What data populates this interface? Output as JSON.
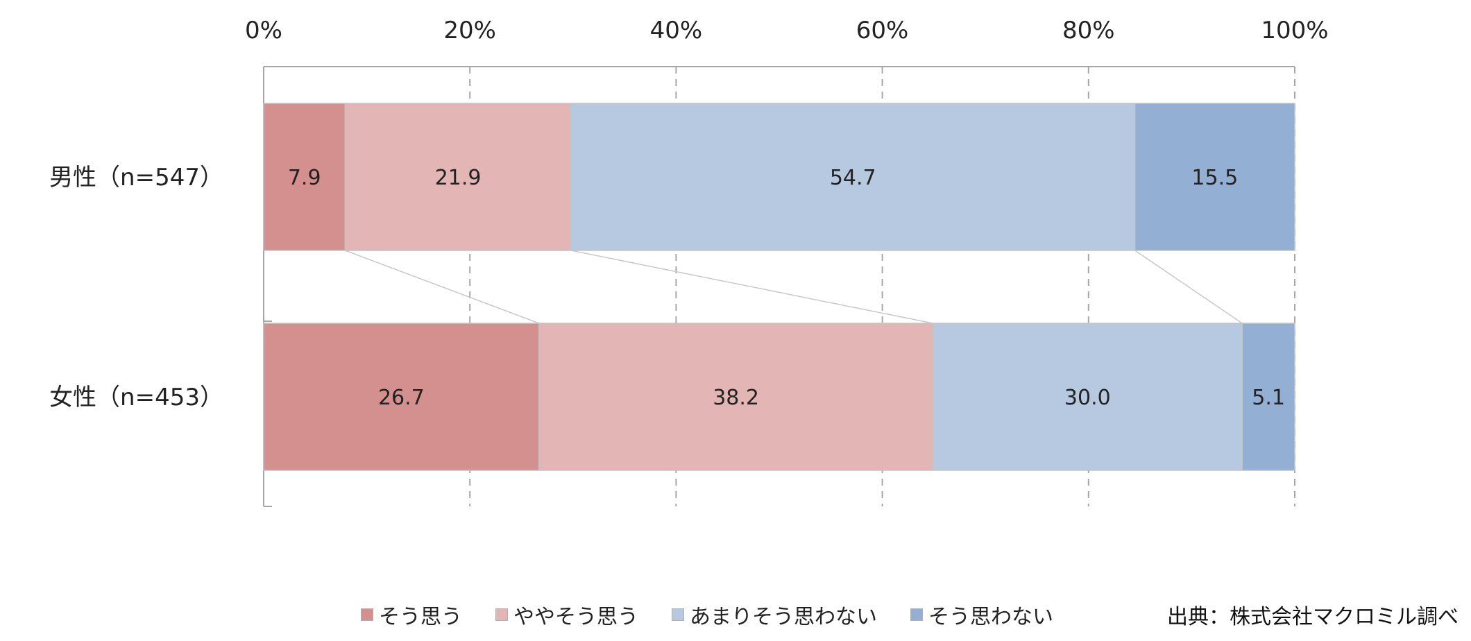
{
  "chart_data": {
    "type": "bar",
    "orientation": "horizontal",
    "stacked": "percent",
    "categories": [
      "男性（n=547）",
      "女性（n=453）"
    ],
    "series": [
      {
        "name": "そう思う",
        "values": [
          7.9,
          26.7
        ],
        "color": "#d4908e"
      },
      {
        "name": "ややそう思う",
        "values": [
          21.9,
          38.2
        ],
        "color": "#e3b5b4"
      },
      {
        "name": "あまりそう思わない",
        "values": [
          54.7,
          30.0
        ],
        "color": "#b7c9e1"
      },
      {
        "name": "そう思わない",
        "values": [
          15.5,
          5.1
        ],
        "color": "#93afd4"
      }
    ],
    "xlim": [
      0,
      100
    ],
    "xticks": [
      "0%",
      "20%",
      "40%",
      "60%",
      "80%",
      "100%"
    ],
    "axis_position": "top",
    "grid": true,
    "series_lines": true,
    "legend": "bottom"
  },
  "source": "出典：株式会社マクロミル調べ"
}
